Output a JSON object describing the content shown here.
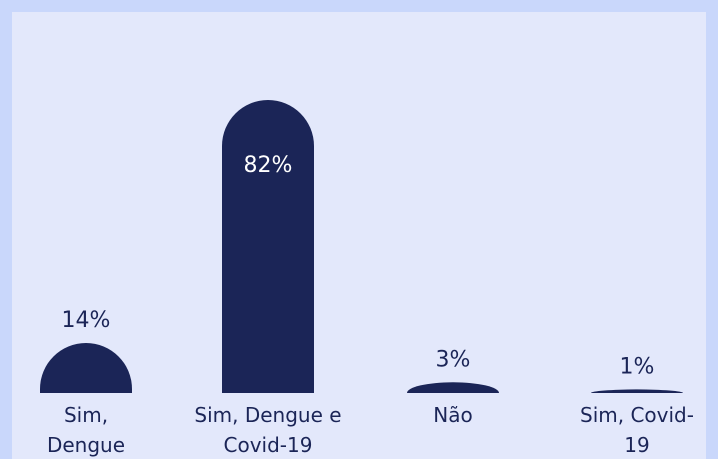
{
  "chart_data": {
    "type": "bar",
    "categories": [
      "Sim, Dengue",
      "Sim, Dengue e Covid-19",
      "Não",
      "Sim, Covid-19"
    ],
    "values": [
      14,
      82,
      3,
      1
    ],
    "value_labels": [
      "14%",
      "82%",
      "3%",
      "1%"
    ],
    "color": "#1b2557"
  }
}
